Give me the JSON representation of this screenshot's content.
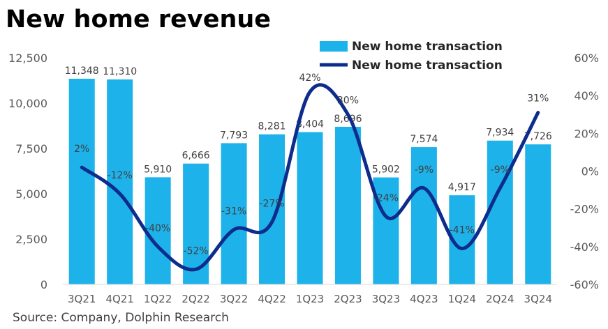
{
  "title": "New home revenue",
  "source": "Source: Company, Dolphin Research",
  "colors": {
    "bar": "#1EB2EA",
    "line": "#0D2C8C"
  },
  "chart_data": {
    "type": "bar",
    "categories": [
      "3Q21",
      "4Q21",
      "1Q22",
      "2Q22",
      "3Q22",
      "4Q22",
      "1Q23",
      "2Q23",
      "3Q23",
      "4Q23",
      "1Q24",
      "2Q24",
      "3Q24"
    ],
    "series": [
      {
        "name": "New home transaction",
        "type": "bar",
        "axis": "left",
        "values": [
          11348,
          11310,
          5910,
          6666,
          7793,
          8281,
          8404,
          8696,
          5902,
          7574,
          4917,
          7934,
          7726
        ],
        "labels": [
          "11,348",
          "11,310",
          "5,910",
          "6,666",
          "7,793",
          "8,281",
          "8,404",
          "8,696",
          "5,902",
          "7,574",
          "4,917",
          "7,934",
          "7,726"
        ]
      },
      {
        "name": "New home transaction",
        "type": "line",
        "axis": "right",
        "values": [
          2,
          -12,
          -40,
          -52,
          -31,
          -27,
          42,
          30,
          -24,
          -9,
          -41,
          -9,
          31
        ],
        "labels": [
          "2%",
          "-12%",
          "-40%",
          "-52%",
          "-31%",
          "-27%",
          "42%",
          "30%",
          "-24%",
          "-9%",
          "-41%",
          "-9%",
          "31%"
        ]
      }
    ],
    "y_left": {
      "min": 0,
      "max": 12500,
      "ticks": [
        "0",
        "2,500",
        "5,000",
        "7,500",
        "10,000",
        "12,500"
      ]
    },
    "y_right": {
      "min": -60,
      "max": 60,
      "ticks": [
        "-60%",
        "-40%",
        "-20%",
        "0%",
        "20%",
        "40%",
        "60%"
      ]
    },
    "legend_position": "top-right",
    "grid": false
  }
}
